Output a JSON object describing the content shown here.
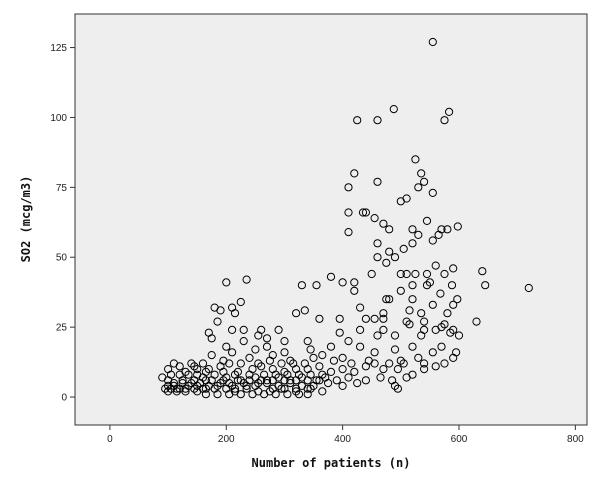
{
  "chart_data": {
    "type": "scatter",
    "title": "",
    "xlabel": "Number of patients (n)",
    "ylabel": "SO2 (mcg/m3)",
    "xlim": [
      -60,
      820
    ],
    "ylim": [
      -10,
      137
    ],
    "xticks": [
      0,
      200,
      400,
      600,
      800
    ],
    "yticks": [
      0,
      25,
      50,
      75,
      100,
      125
    ],
    "grid": false,
    "legend": "none",
    "marker": "open-circle",
    "colors": {
      "plot_background": "#eeeeee",
      "marker_stroke": "#000000",
      "page_background": "#ffffff"
    },
    "points": [
      [
        555,
        127
      ],
      [
        425,
        99
      ],
      [
        460,
        99
      ],
      [
        488,
        103
      ],
      [
        575,
        99
      ],
      [
        583,
        102
      ],
      [
        420,
        80
      ],
      [
        525,
        85
      ],
      [
        535,
        80
      ],
      [
        540,
        77
      ],
      [
        500,
        70
      ],
      [
        510,
        71
      ],
      [
        410,
        75
      ],
      [
        460,
        77
      ],
      [
        530,
        75
      ],
      [
        555,
        73
      ],
      [
        410,
        66
      ],
      [
        435,
        66
      ],
      [
        440,
        66
      ],
      [
        455,
        64
      ],
      [
        470,
        62
      ],
      [
        480,
        60
      ],
      [
        520,
        60
      ],
      [
        530,
        58
      ],
      [
        570,
        60
      ],
      [
        580,
        60
      ],
      [
        598,
        61
      ],
      [
        545,
        63
      ],
      [
        410,
        59
      ],
      [
        460,
        55
      ],
      [
        480,
        52
      ],
      [
        490,
        50
      ],
      [
        505,
        53
      ],
      [
        520,
        55
      ],
      [
        555,
        56
      ],
      [
        565,
        58
      ],
      [
        460,
        50
      ],
      [
        475,
        48
      ],
      [
        560,
        47
      ],
      [
        590,
        46
      ],
      [
        640,
        45
      ],
      [
        380,
        43
      ],
      [
        400,
        41
      ],
      [
        420,
        41
      ],
      [
        450,
        44
      ],
      [
        500,
        44
      ],
      [
        510,
        44
      ],
      [
        525,
        44
      ],
      [
        550,
        41
      ],
      [
        575,
        44
      ],
      [
        588,
        40
      ],
      [
        645,
        40
      ],
      [
        720,
        39
      ],
      [
        330,
        40
      ],
      [
        355,
        40
      ],
      [
        420,
        38
      ],
      [
        480,
        35
      ],
      [
        520,
        35
      ],
      [
        555,
        33
      ],
      [
        568,
        37
      ],
      [
        597,
        35
      ],
      [
        430,
        32
      ],
      [
        455,
        28
      ],
      [
        475,
        35
      ],
      [
        515,
        31
      ],
      [
        535,
        30
      ],
      [
        580,
        30
      ],
      [
        590,
        33
      ],
      [
        470,
        28
      ],
      [
        510,
        27
      ],
      [
        540,
        27
      ],
      [
        570,
        25
      ],
      [
        585,
        23
      ],
      [
        630,
        27
      ],
      [
        200,
        41
      ],
      [
        235,
        42
      ],
      [
        225,
        34
      ],
      [
        190,
        31
      ],
      [
        210,
        32
      ],
      [
        180,
        32
      ],
      [
        215,
        30
      ],
      [
        185,
        27
      ],
      [
        170,
        23
      ],
      [
        210,
        24
      ],
      [
        230,
        24
      ],
      [
        260,
        24
      ],
      [
        290,
        24
      ],
      [
        320,
        30
      ],
      [
        335,
        31
      ],
      [
        360,
        28
      ],
      [
        395,
        23
      ],
      [
        430,
        24
      ],
      [
        470,
        24
      ],
      [
        515,
        26
      ],
      [
        540,
        24
      ],
      [
        560,
        24
      ],
      [
        575,
        26
      ],
      [
        590,
        24
      ],
      [
        175,
        21
      ],
      [
        200,
        18
      ],
      [
        230,
        20
      ],
      [
        250,
        17
      ],
      [
        270,
        18
      ],
      [
        300,
        20
      ],
      [
        340,
        20
      ],
      [
        380,
        18
      ],
      [
        410,
        20
      ],
      [
        430,
        18
      ],
      [
        455,
        16
      ],
      [
        490,
        17
      ],
      [
        520,
        18
      ],
      [
        555,
        16
      ],
      [
        600,
        22
      ],
      [
        210,
        16
      ],
      [
        240,
        14
      ],
      [
        280,
        15
      ],
      [
        310,
        13
      ],
      [
        350,
        14
      ],
      [
        400,
        14
      ],
      [
        445,
        13
      ],
      [
        500,
        13
      ],
      [
        540,
        12
      ],
      [
        575,
        12
      ],
      [
        590,
        14
      ],
      [
        150,
        10
      ],
      [
        170,
        10
      ],
      [
        190,
        11
      ],
      [
        220,
        9
      ],
      [
        245,
        10
      ],
      [
        260,
        11
      ],
      [
        280,
        10
      ],
      [
        300,
        9
      ],
      [
        320,
        10
      ],
      [
        340,
        10
      ],
      [
        360,
        11
      ],
      [
        380,
        9
      ],
      [
        400,
        10
      ],
      [
        420,
        9
      ],
      [
        440,
        11
      ],
      [
        470,
        10
      ],
      [
        495,
        10
      ],
      [
        520,
        8
      ],
      [
        540,
        10
      ],
      [
        560,
        11
      ],
      [
        120,
        8
      ],
      [
        135,
        8
      ],
      [
        160,
        7
      ],
      [
        180,
        8
      ],
      [
        200,
        7
      ],
      [
        225,
        6
      ],
      [
        250,
        7
      ],
      [
        270,
        6
      ],
      [
        290,
        7
      ],
      [
        310,
        6
      ],
      [
        330,
        7
      ],
      [
        355,
        6
      ],
      [
        370,
        7
      ],
      [
        390,
        6
      ],
      [
        410,
        7
      ],
      [
        440,
        6
      ],
      [
        465,
        7
      ],
      [
        485,
        6
      ],
      [
        510,
        7
      ],
      [
        100,
        6
      ],
      [
        110,
        5
      ],
      [
        125,
        5
      ],
      [
        140,
        5
      ],
      [
        155,
        5
      ],
      [
        170,
        4
      ],
      [
        190,
        5
      ],
      [
        210,
        4
      ],
      [
        230,
        5
      ],
      [
        250,
        4
      ],
      [
        270,
        5
      ],
      [
        290,
        4
      ],
      [
        310,
        5
      ],
      [
        330,
        4
      ],
      [
        350,
        4
      ],
      [
        375,
        5
      ],
      [
        400,
        4
      ],
      [
        425,
        5
      ],
      [
        490,
        4
      ],
      [
        95,
        3
      ],
      [
        105,
        3
      ],
      [
        115,
        3
      ],
      [
        130,
        3
      ],
      [
        145,
        3
      ],
      [
        160,
        3
      ],
      [
        180,
        3
      ],
      [
        200,
        3
      ],
      [
        215,
        2
      ],
      [
        235,
        3
      ],
      [
        255,
        2
      ],
      [
        275,
        2
      ],
      [
        295,
        3
      ],
      [
        320,
        2
      ],
      [
        345,
        3
      ],
      [
        365,
        2
      ],
      [
        495,
        3
      ],
      [
        100,
        2
      ],
      [
        115,
        2
      ],
      [
        130,
        2
      ],
      [
        150,
        2
      ],
      [
        165,
        1
      ],
      [
        185,
        1
      ],
      [
        205,
        1
      ],
      [
        225,
        1
      ],
      [
        245,
        1
      ],
      [
        265,
        1
      ],
      [
        285,
        1
      ],
      [
        305,
        1
      ],
      [
        325,
        1
      ],
      [
        340,
        1
      ],
      [
        100,
        10
      ],
      [
        110,
        12
      ],
      [
        120,
        11
      ],
      [
        140,
        12
      ],
      [
        160,
        12
      ],
      [
        175,
        15
      ],
      [
        195,
        13
      ],
      [
        205,
        12
      ],
      [
        225,
        12
      ],
      [
        255,
        12
      ],
      [
        275,
        13
      ],
      [
        295,
        12
      ],
      [
        315,
        12
      ],
      [
        335,
        12
      ],
      [
        105,
        8
      ],
      [
        130,
        9
      ],
      [
        150,
        8
      ],
      [
        165,
        6
      ],
      [
        195,
        9
      ],
      [
        215,
        8
      ],
      [
        240,
        8
      ],
      [
        265,
        8
      ],
      [
        285,
        8
      ],
      [
        305,
        8
      ],
      [
        325,
        8
      ],
      [
        345,
        8
      ],
      [
        365,
        8
      ],
      [
        110,
        4
      ],
      [
        125,
        6
      ],
      [
        145,
        6
      ],
      [
        175,
        6
      ],
      [
        195,
        6
      ],
      [
        205,
        5
      ],
      [
        220,
        6
      ],
      [
        240,
        6
      ],
      [
        260,
        6
      ],
      [
        280,
        6
      ],
      [
        300,
        6
      ],
      [
        320,
        6
      ],
      [
        340,
        6
      ],
      [
        360,
        6
      ],
      [
        90,
        7
      ],
      [
        100,
        4
      ],
      [
        120,
        3
      ],
      [
        135,
        4
      ],
      [
        150,
        4
      ],
      [
        165,
        3
      ],
      [
        185,
        4
      ],
      [
        215,
        3
      ],
      [
        235,
        4
      ],
      [
        255,
        5
      ],
      [
        280,
        3
      ],
      [
        300,
        3
      ],
      [
        320,
        3
      ],
      [
        340,
        3
      ],
      [
        455,
        12
      ],
      [
        480,
        12
      ],
      [
        505,
        12
      ],
      [
        530,
        14
      ],
      [
        460,
        22
      ],
      [
        490,
        22
      ],
      [
        535,
        22
      ],
      [
        570,
        18
      ],
      [
        595,
        16
      ],
      [
        145,
        11
      ],
      [
        165,
        9
      ],
      [
        255,
        22
      ],
      [
        270,
        21
      ],
      [
        300,
        16
      ],
      [
        345,
        17
      ],
      [
        365,
        15
      ],
      [
        385,
        13
      ],
      [
        415,
        12
      ],
      [
        395,
        28
      ],
      [
        440,
        28
      ],
      [
        470,
        30
      ],
      [
        500,
        38
      ],
      [
        520,
        40
      ],
      [
        545,
        40
      ],
      [
        545,
        44
      ]
    ]
  }
}
